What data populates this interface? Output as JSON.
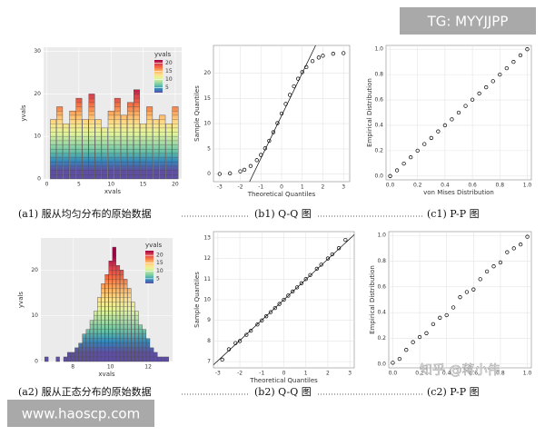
{
  "chart_data": [
    {
      "type": "bar",
      "x_label": "xvals",
      "y_label": "yvals",
      "x": [
        1,
        2,
        3,
        4,
        5,
        6,
        7,
        8,
        9,
        10,
        11,
        12,
        13,
        14,
        15,
        16,
        17,
        18,
        19,
        20
      ],
      "values": [
        14,
        17,
        13,
        16,
        19,
        14,
        20,
        14,
        12,
        16,
        19,
        15,
        18,
        21,
        13,
        17,
        14,
        15,
        13,
        17
      ],
      "xlim": [
        -0.5,
        21
      ],
      "xticks": [
        0,
        5,
        10,
        15,
        20
      ],
      "ylim": [
        0,
        31
      ],
      "yticks": [
        0,
        10,
        20,
        30
      ],
      "grid": true,
      "background": "#ebebeb",
      "colormap": [
        "#5e4fa2",
        "#3288bd",
        "#66c2a5",
        "#abdda4",
        "#e6f598",
        "#fee08b",
        "#fdae61",
        "#f46d43",
        "#d53e4f",
        "#9e0142"
      ],
      "colorbar": {
        "title": "yvals",
        "lim": [
          2,
          22
        ],
        "ticks": [
          5,
          10,
          15,
          20
        ]
      }
    },
    {
      "type": "scatter",
      "x_label": "Theoretical Quantiles",
      "y_label": "Sample Quantiles",
      "marker": "open",
      "color": "#000000",
      "x": [
        -3,
        -2.5,
        -2,
        -1.8,
        -1.5,
        -1.2,
        -1,
        -0.8,
        -0.6,
        -0.4,
        -0.2,
        0,
        0.2,
        0.4,
        0.6,
        0.8,
        1,
        1.2,
        1.5,
        1.8,
        2,
        2.5,
        3
      ],
      "values": [
        0.03,
        0.15,
        0.55,
        0.86,
        1.6,
        2.76,
        3.8,
        5.1,
        6.6,
        8.3,
        10.1,
        12,
        13.9,
        15.7,
        17.4,
        18.9,
        20.2,
        21.2,
        22.4,
        23.1,
        23.45,
        23.85,
        23.97
      ],
      "ref_line": {
        "x": [
          -1.55,
          1.65
        ],
        "y": [
          -1.5,
          25.5
        ]
      },
      "xlim": [
        -3.3,
        3.3
      ],
      "xticks": [
        -3,
        -2,
        -1,
        0,
        1,
        2,
        3
      ],
      "ylim": [
        -1.5,
        25.5
      ],
      "yticks": [
        0,
        5,
        10,
        15,
        20
      ],
      "grid": true,
      "background": "#ffffff"
    },
    {
      "type": "scatter",
      "x_label": "von Mises Distribution",
      "y_label": "Empirical Distribution",
      "marker": "open",
      "color": "#000000",
      "x": [
        0,
        0.05,
        0.1,
        0.15,
        0.2,
        0.25,
        0.3,
        0.35,
        0.4,
        0.45,
        0.5,
        0.55,
        0.6,
        0.65,
        0.7,
        0.75,
        0.8,
        0.85,
        0.9,
        0.95,
        1
      ],
      "values": [
        0,
        0.045,
        0.098,
        0.148,
        0.2,
        0.252,
        0.3,
        0.352,
        0.4,
        0.447,
        0.5,
        0.553,
        0.602,
        0.651,
        0.7,
        0.748,
        0.8,
        0.85,
        0.9,
        0.952,
        1
      ],
      "xlim": [
        -0.03,
        1.03
      ],
      "xticks": [
        {
          "value": 0,
          "label": "0.0"
        },
        0.2,
        0.4,
        0.6,
        0.8,
        {
          "value": 1,
          "label": "1.0"
        }
      ],
      "ylim": [
        -0.03,
        1.03
      ],
      "yticks": [
        {
          "value": 0,
          "label": "0.0"
        },
        0.2,
        0.4,
        0.6,
        0.8,
        {
          "value": 1,
          "label": "1.0"
        }
      ],
      "grid": true,
      "background": "#ffffff"
    },
    {
      "type": "bar",
      "x_label": "xvals",
      "y_label": "yvals",
      "x": [
        6.6,
        6.8,
        7,
        7.2,
        7.4,
        7.6,
        7.8,
        8,
        8.2,
        8.4,
        8.6,
        8.8,
        9,
        9.2,
        9.4,
        9.6,
        9.8,
        10,
        10.2,
        10.4,
        10.6,
        10.8,
        11,
        11.2,
        11.4,
        11.6,
        11.8,
        12,
        12.2,
        12.4,
        12.6,
        12.8,
        13
      ],
      "values": [
        1,
        0,
        0,
        1,
        0,
        1,
        2,
        2,
        3,
        4,
        6,
        7,
        9,
        11,
        14,
        17,
        19,
        22,
        25,
        21,
        20,
        18,
        16,
        13,
        11,
        8,
        7,
        5,
        3,
        2,
        1,
        1,
        1
      ],
      "xlim": [
        6.3,
        13.3
      ],
      "xticks": [
        8,
        10,
        12
      ],
      "ylim": [
        0,
        27
      ],
      "yticks": [
        0,
        10,
        20
      ],
      "grid": true,
      "background": "#ebebeb",
      "colormap": [
        "#5e4fa2",
        "#3288bd",
        "#66c2a5",
        "#abdda4",
        "#e6f598",
        "#fee08b",
        "#fdae61",
        "#f46d43",
        "#d53e4f",
        "#9e0142"
      ],
      "colorbar": {
        "title": "yvals",
        "lim": [
          2,
          23
        ],
        "ticks": [
          5,
          10,
          15,
          20
        ]
      }
    },
    {
      "type": "scatter",
      "x_label": "Theoretical Quantiles",
      "y_label": "Sample Quantiles",
      "marker": "open",
      "color": "#000000",
      "x": [
        -2.8,
        -2.5,
        -2.2,
        -2,
        -1.7,
        -1.5,
        -1.2,
        -1,
        -0.8,
        -0.6,
        -0.4,
        -0.2,
        0,
        0.2,
        0.4,
        0.6,
        0.8,
        1,
        1.2,
        1.5,
        1.7,
        2,
        2.2,
        2.5,
        2.8
      ],
      "values": [
        7.1,
        7.6,
        7.9,
        8.0,
        8.3,
        8.5,
        8.8,
        9.0,
        9.2,
        9.4,
        9.6,
        9.8,
        10.0,
        10.2,
        10.4,
        10.6,
        10.8,
        11.0,
        11.2,
        11.5,
        11.7,
        12.0,
        12.2,
        12.5,
        12.9
      ],
      "ref_line": {
        "x": [
          -3.2,
          3.2
        ],
        "y": [
          6.85,
          13.15
        ]
      },
      "xlim": [
        -3.2,
        3.2
      ],
      "xticks": [
        -3,
        -2,
        -1,
        0,
        1,
        2,
        3
      ],
      "ylim": [
        6.7,
        13.3
      ],
      "yticks": [
        7,
        8,
        9,
        10,
        11,
        12,
        13
      ],
      "grid": true,
      "background": "#ffffff"
    },
    {
      "type": "scatter",
      "y_label": "Empirical Distribution",
      "marker": "open",
      "color": "#000000",
      "x": [
        0,
        0.05,
        0.1,
        0.15,
        0.2,
        0.25,
        0.3,
        0.35,
        0.4,
        0.45,
        0.5,
        0.55,
        0.6,
        0.65,
        0.7,
        0.75,
        0.8,
        0.85,
        0.9,
        0.95,
        1
      ],
      "values": [
        0.01,
        0.04,
        0.11,
        0.17,
        0.21,
        0.24,
        0.31,
        0.36,
        0.38,
        0.44,
        0.52,
        0.56,
        0.58,
        0.66,
        0.72,
        0.76,
        0.79,
        0.87,
        0.9,
        0.93,
        0.99
      ],
      "xlim": [
        -0.03,
        1.03
      ],
      "xticks": [
        {
          "value": 0,
          "label": "0.0"
        },
        0.2,
        0.4,
        0.6,
        0.8,
        {
          "value": 1,
          "label": "1.0"
        }
      ],
      "ylim": [
        -0.03,
        1.03
      ],
      "yticks": [
        {
          "value": 0,
          "label": "0.0"
        },
        0.2,
        0.4,
        0.6,
        0.8,
        {
          "value": 1,
          "label": "1.0"
        }
      ],
      "grid": true,
      "background": "#ffffff"
    }
  ],
  "captions": [
    "(a1) 服从均匀分布的原始数据",
    "(b1) Q-Q 图",
    "(c1) P-P 图",
    "(a2) 服从正态分布的原始数据",
    "(b2) Q-Q 图",
    "(c2) P-P 图"
  ],
  "watermarks": {
    "top": "TG: MYYJJPP",
    "bottom": "www.haoscp.com",
    "zhihu": "知乎 @蒋小伟"
  }
}
